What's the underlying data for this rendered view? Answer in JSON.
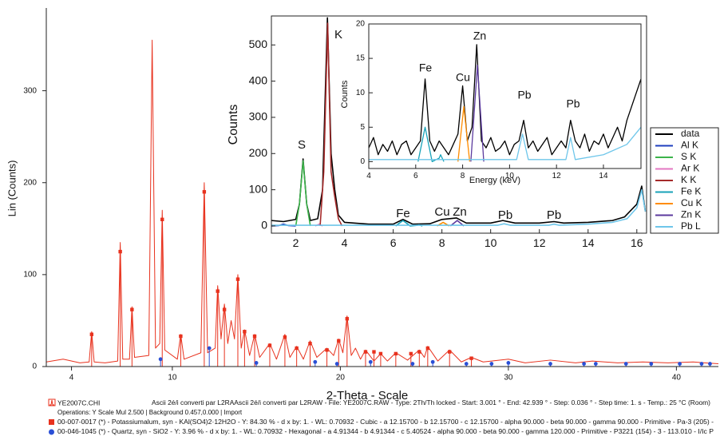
{
  "chart_data": [
    {
      "type": "line",
      "x_label": "2-Theta - Scale",
      "y_label": "Lin (Counts)",
      "xlim": [
        2.5,
        42.5
      ],
      "xticks": [
        4,
        10,
        20,
        30,
        40
      ],
      "ylim": [
        0,
        390
      ],
      "yticks": [
        0,
        100,
        200,
        300
      ],
      "file_info": "Ascii 2é/i converti par L2RAAscii 2é/i converti par L2RAW - File: YE2007C.RAW - Type: 2Th/Th locked - Start: 3.001 ° - End: 42.939 ° - Step: 0.036 ° - Step time: 1. s - Temp.: 25 °C (Room)",
      "operations": "Operations: Y Scale Mul 2.500 | Background 0.457,0.000 | Import",
      "series": [
        {
          "name": "YE2007C.CHI",
          "color": "#e8321e",
          "x": [
            2.5,
            3.5,
            4.5,
            5.05,
            5.2,
            5.35,
            6.0,
            6.75,
            6.9,
            7.05,
            7.45,
            7.6,
            7.75,
            8.6,
            8.8,
            9.0,
            9.25,
            9.4,
            9.55,
            10.3,
            10.5,
            10.7,
            11.7,
            11.9,
            12.1,
            12.55,
            12.7,
            12.9,
            13.1,
            13.3,
            13.5,
            13.7,
            13.9,
            14.1,
            14.3,
            14.6,
            14.9,
            15.2,
            15.8,
            16.2,
            16.7,
            17.0,
            17.4,
            17.8,
            18.2,
            18.6,
            19.2,
            19.6,
            19.9,
            20.15,
            20.4,
            20.65,
            20.9,
            21.2,
            21.5,
            22.0,
            22.4,
            22.8,
            23.3,
            24.0,
            24.7,
            25.0,
            25.2,
            25.8,
            26.5,
            27.2,
            27.8,
            28.5,
            30.0,
            31.0,
            32.5,
            34.0,
            35.0,
            36.5,
            38.0,
            39.5,
            41.0,
            42.5
          ],
          "values": [
            5,
            8,
            4,
            5,
            38,
            5,
            4,
            6,
            135,
            8,
            8,
            65,
            10,
            12,
            355,
            20,
            25,
            170,
            18,
            8,
            35,
            8,
            15,
            200,
            15,
            20,
            88,
            30,
            68,
            25,
            50,
            30,
            100,
            20,
            40,
            12,
            35,
            10,
            25,
            8,
            35,
            10,
            22,
            8,
            28,
            10,
            20,
            12,
            30,
            15,
            55,
            12,
            20,
            8,
            18,
            6,
            14,
            6,
            15,
            7,
            18,
            10,
            22,
            6,
            18,
            5,
            10,
            5,
            8,
            4,
            7,
            4,
            6,
            4,
            5,
            4,
            5,
            3
          ]
        },
        {
          "name": "00-007-0017 (*) - Potassiumalum, syn - KAl(SO4)2·12H2O - Y: 84.30 % - d x by: 1. - WL: 0.70932 - Cubic - a 12.15700 - b 12.15700 - c 12.15700 - alpha 90.000 - beta 90.000 - gamma 90.000 - Primitive - Pa-3 (205) -",
          "color": "#e8321e",
          "style": "stick",
          "marker": "square",
          "x": [
            5.2,
            6.9,
            7.6,
            9.4,
            10.5,
            11.9,
            12.7,
            13.1,
            13.9,
            14.3,
            14.9,
            15.8,
            16.7,
            17.4,
            18.2,
            19.2,
            19.9,
            20.4,
            21.5,
            22.0,
            22.4,
            23.3,
            24.2,
            24.7,
            25.2,
            26.5,
            27.8
          ],
          "values": [
            35,
            125,
            62,
            160,
            33,
            190,
            82,
            62,
            95,
            38,
            33,
            23,
            32,
            20,
            25,
            18,
            28,
            52,
            16,
            16,
            14,
            14,
            14,
            16,
            20,
            16,
            9
          ]
        },
        {
          "name": "00-046-1045 (*) - Quartz, syn - SiO2 - Y: 3.96 % - d x by: 1. - WL: 0.70932 - Hexagonal - a 4.91344 - b 4.91344 - c 5.40524 - alpha 90.000 - beta 90.000 - gamma 120.000 - Primitive - P3221 (154) - 3 - 113.010 - I/Ic P",
          "color": "#2a4fd6",
          "style": "stick",
          "marker": "circle",
          "x": [
            9.3,
            12.2,
            15.0,
            18.5,
            19.8,
            21.8,
            24.3,
            25.5,
            27.5,
            29.0,
            30.0,
            32.5,
            34.5,
            35.2,
            37.0,
            38.5,
            40.2,
            41.5,
            42.0
          ],
          "values": [
            8,
            20,
            4,
            5,
            3,
            5,
            3,
            5,
            3,
            3,
            4,
            3,
            3,
            3,
            3,
            3,
            3,
            3,
            3
          ]
        }
      ]
    },
    {
      "type": "line",
      "y_label": "Counts",
      "xlim": [
        1,
        16.4
      ],
      "xticks": [
        2,
        4,
        6,
        8,
        10,
        12,
        14,
        16
      ],
      "ylim": [
        -20,
        580
      ],
      "yticks": [
        0,
        100,
        200,
        300,
        400,
        500
      ],
      "annotations": [
        "S",
        "K",
        "Fe",
        "Cu",
        "Zn",
        "Pb",
        "Pb"
      ],
      "series": [
        {
          "name": "data",
          "color": "#000000",
          "x": [
            1.0,
            1.5,
            2.0,
            2.15,
            2.3,
            2.45,
            2.6,
            2.9,
            3.1,
            3.3,
            3.45,
            3.6,
            3.75,
            4.0,
            5.0,
            6.0,
            6.4,
            6.8,
            7.5,
            8.0,
            8.6,
            9.0,
            10.0,
            10.5,
            11.0,
            12.0,
            12.6,
            13.0,
            14.0,
            15.0,
            15.5,
            16.0,
            16.2,
            16.35
          ],
          "values": [
            15,
            12,
            18,
            60,
            185,
            60,
            15,
            20,
            100,
            575,
            200,
            100,
            30,
            10,
            5,
            5,
            18,
            5,
            6,
            18,
            22,
            8,
            8,
            15,
            8,
            8,
            12,
            8,
            10,
            15,
            25,
            60,
            110,
            40
          ]
        },
        {
          "name": "Al K",
          "color": "#1f3fbf",
          "x": [
            1.0,
            1.3,
            1.49,
            1.7,
            2.0
          ],
          "values": [
            0,
            1,
            5,
            1,
            0
          ]
        },
        {
          "name": "S K",
          "color": "#3cb44b",
          "x": [
            2.0,
            2.15,
            2.3,
            2.45,
            2.6
          ],
          "values": [
            0,
            60,
            180,
            60,
            0
          ]
        },
        {
          "name": "Ar K",
          "color": "#e377c2",
          "x": [
            2.8,
            2.96,
            3.1
          ],
          "values": [
            0,
            5,
            0
          ]
        },
        {
          "name": "K K",
          "color": "#a52a2a",
          "x": [
            3.0,
            3.15,
            3.31,
            3.45,
            3.59,
            3.75,
            3.9
          ],
          "values": [
            0,
            150,
            560,
            150,
            85,
            20,
            0
          ]
        },
        {
          "name": "Fe K",
          "color": "#17a2b8",
          "x": [
            6.1,
            6.4,
            6.7,
            7.0,
            7.06,
            7.2
          ],
          "values": [
            0,
            15,
            0,
            2,
            3,
            0
          ]
        },
        {
          "name": "Cu K",
          "color": "#ff8c00",
          "x": [
            7.8,
            8.05,
            8.3
          ],
          "values": [
            0,
            10,
            0
          ]
        },
        {
          "name": "Zn K",
          "color": "#5b3a9e",
          "x": [
            8.35,
            8.63,
            8.9
          ],
          "values": [
            0,
            15,
            0
          ]
        },
        {
          "name": "Pb L",
          "color": "#6ec6ea",
          "x": [
            1,
            4,
            8,
            10.3,
            10.55,
            10.8,
            12.4,
            12.6,
            12.8,
            14,
            15,
            15.6,
            16,
            16.2,
            16.35
          ],
          "values": [
            2,
            2,
            2,
            2,
            6,
            2,
            2,
            5,
            2,
            5,
            10,
            20,
            50,
            100,
            40
          ]
        }
      ]
    },
    {
      "type": "line",
      "x_label": "Energy (keV)",
      "y_label": "Counts",
      "xlim": [
        4,
        15.6
      ],
      "xticks": [
        4,
        6,
        8,
        10,
        12,
        14
      ],
      "ylim": [
        -1,
        20
      ],
      "yticks": [
        0,
        5,
        10,
        15,
        20
      ],
      "annotations": [
        "Fe",
        "Cu",
        "Zn",
        "Pb",
        "Pb"
      ],
      "series": [
        {
          "color": "#000000",
          "x": [
            4.0,
            4.2,
            4.4,
            4.6,
            4.8,
            5.0,
            5.2,
            5.4,
            5.6,
            5.8,
            6.0,
            6.2,
            6.4,
            6.6,
            6.8,
            7.0,
            7.2,
            7.4,
            7.6,
            7.8,
            8.0,
            8.2,
            8.4,
            8.6,
            8.8,
            9.0,
            9.2,
            9.4,
            9.6,
            9.8,
            10.0,
            10.2,
            10.4,
            10.6,
            10.8,
            11.0,
            11.2,
            11.4,
            11.6,
            11.8,
            12.0,
            12.2,
            12.4,
            12.6,
            12.8,
            13.0,
            13.2,
            13.4,
            13.6,
            13.8,
            14.0,
            14.2,
            14.4,
            14.6,
            14.8,
            15.0,
            15.2,
            15.4,
            15.6
          ],
          "values": [
            2,
            3.5,
            1,
            2.5,
            1.5,
            3,
            1,
            2.5,
            3,
            1,
            2,
            3,
            12,
            3,
            1.5,
            3,
            2,
            1,
            2.5,
            4,
            11,
            3,
            5,
            17,
            3,
            2,
            3.5,
            1.5,
            2,
            3,
            1,
            2.5,
            3,
            6,
            2,
            3,
            1.5,
            2.5,
            3.5,
            1,
            2,
            3,
            2,
            6,
            3,
            2,
            4,
            1.5,
            3,
            2.5,
            4,
            2,
            3.5,
            5,
            3,
            6,
            8,
            10,
            12
          ]
        },
        {
          "color": "#17a2b8",
          "x": [
            6.1,
            6.4,
            6.7,
            7.0,
            7.06,
            7.2
          ],
          "values": [
            0,
            5,
            0,
            0.5,
            1,
            0
          ]
        },
        {
          "color": "#ff8c00",
          "x": [
            7.8,
            8.05,
            8.3
          ],
          "values": [
            0,
            8,
            0
          ]
        },
        {
          "color": "#5b3a9e",
          "x": [
            8.35,
            8.63,
            8.9
          ],
          "values": [
            0,
            14,
            0
          ]
        },
        {
          "color": "#6ec6ea",
          "x": [
            4,
            6,
            8,
            10.3,
            10.55,
            10.8,
            12.4,
            12.6,
            12.8,
            14,
            15,
            15.6
          ],
          "values": [
            0.3,
            0.3,
            0.3,
            0.3,
            4,
            0.3,
            0.3,
            3.5,
            0.3,
            1,
            2.5,
            5
          ]
        }
      ]
    }
  ]
}
